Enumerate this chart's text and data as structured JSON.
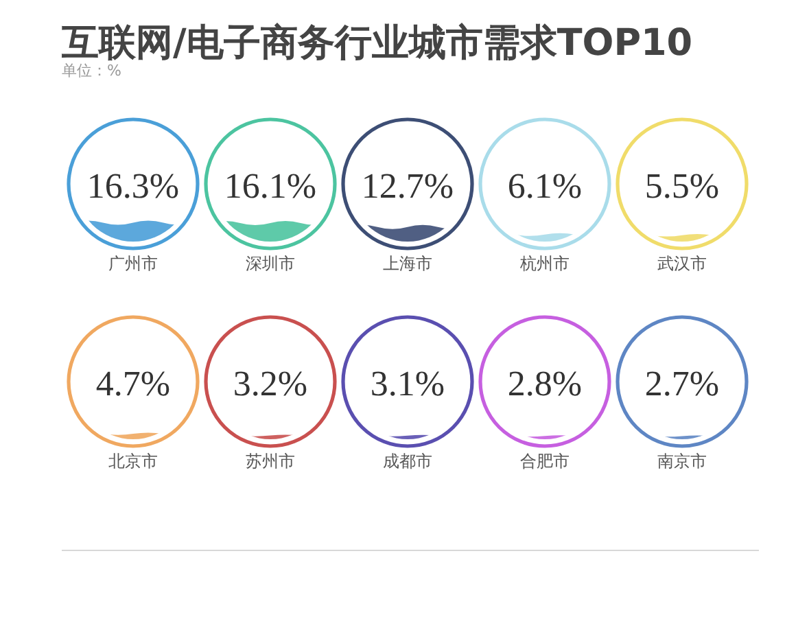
{
  "chart_data": {
    "type": "other",
    "title": "互联网/电子商务行业城市需求TOP10",
    "subtitle": "单位：%",
    "categories": [
      "广州市",
      "深圳市",
      "上海市",
      "杭州市",
      "武汉市",
      "北京市",
      "苏州市",
      "成都市",
      "合肥市",
      "南京市"
    ],
    "values": [
      16.3,
      16.1,
      12.7,
      6.1,
      5.5,
      4.7,
      3.2,
      3.1,
      2.8,
      2.7
    ],
    "value_labels": [
      "16.3%",
      "16.1%",
      "12.7%",
      "6.1%",
      "5.5%",
      "4.7%",
      "3.2%",
      "3.1%",
      "2.8%",
      "2.7%"
    ],
    "colors": [
      "#4a9fd8",
      "#4cc4a0",
      "#3d4e75",
      "#a9dcea",
      "#f0dc6a",
      "#f0a860",
      "#c9504f",
      "#5a4fb0",
      "#c65fe0",
      "#5e86c4"
    ]
  }
}
